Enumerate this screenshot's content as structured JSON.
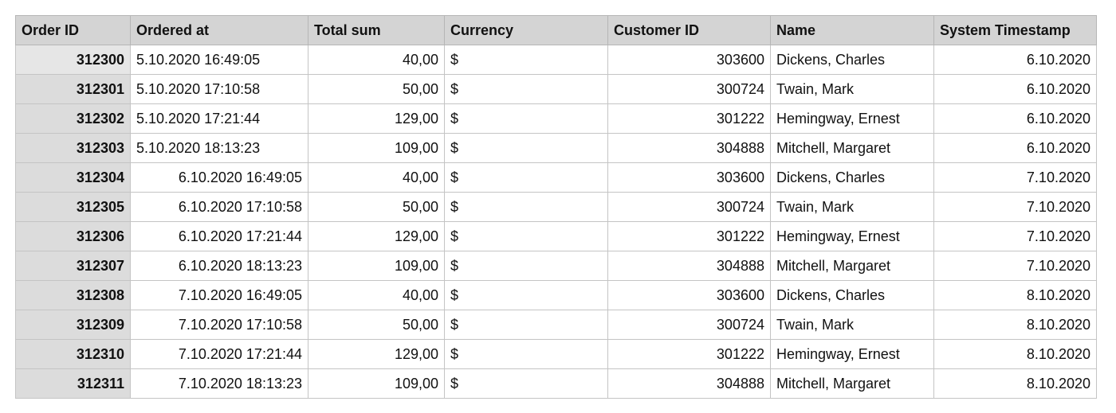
{
  "columns": [
    {
      "key": "order_id",
      "label": "Order ID"
    },
    {
      "key": "ordered_at",
      "label": "Ordered at"
    },
    {
      "key": "total_sum",
      "label": "Total sum"
    },
    {
      "key": "currency",
      "label": "Currency"
    },
    {
      "key": "customer_id",
      "label": "Customer ID"
    },
    {
      "key": "name",
      "label": "Name"
    },
    {
      "key": "system_timestamp",
      "label": "System Timestamp"
    }
  ],
  "rows": [
    {
      "order_id": "312300",
      "ordered_at": "5.10.2020 16:49:05",
      "total_sum": "40,00",
      "currency": "$",
      "customer_id": "303600",
      "name": "Dickens, Charles",
      "system_timestamp": "6.10.2020"
    },
    {
      "order_id": "312301",
      "ordered_at": "5.10.2020 17:10:58",
      "total_sum": "50,00",
      "currency": "$",
      "customer_id": "300724",
      "name": "Twain, Mark",
      "system_timestamp": "6.10.2020"
    },
    {
      "order_id": "312302",
      "ordered_at": "5.10.2020 17:21:44",
      "total_sum": "129,00",
      "currency": "$",
      "customer_id": "301222",
      "name": "Hemingway, Ernest",
      "system_timestamp": "6.10.2020"
    },
    {
      "order_id": "312303",
      "ordered_at": "5.10.2020 18:13:23",
      "total_sum": "109,00",
      "currency": "$",
      "customer_id": "304888",
      "name": "Mitchell, Margaret",
      "system_timestamp": "6.10.2020"
    },
    {
      "order_id": "312304",
      "ordered_at": "6.10.2020 16:49:05",
      "total_sum": "40,00",
      "currency": "$",
      "customer_id": "303600",
      "name": "Dickens, Charles",
      "system_timestamp": "7.10.2020"
    },
    {
      "order_id": "312305",
      "ordered_at": "6.10.2020 17:10:58",
      "total_sum": "50,00",
      "currency": "$",
      "customer_id": "300724",
      "name": "Twain, Mark",
      "system_timestamp": "7.10.2020"
    },
    {
      "order_id": "312306",
      "ordered_at": "6.10.2020 17:21:44",
      "total_sum": "129,00",
      "currency": "$",
      "customer_id": "301222",
      "name": "Hemingway, Ernest",
      "system_timestamp": "7.10.2020"
    },
    {
      "order_id": "312307",
      "ordered_at": "6.10.2020 18:13:23",
      "total_sum": "109,00",
      "currency": "$",
      "customer_id": "304888",
      "name": "Mitchell, Margaret",
      "system_timestamp": "7.10.2020"
    },
    {
      "order_id": "312308",
      "ordered_at": "7.10.2020 16:49:05",
      "total_sum": "40,00",
      "currency": "$",
      "customer_id": "303600",
      "name": "Dickens, Charles",
      "system_timestamp": "8.10.2020"
    },
    {
      "order_id": "312309",
      "ordered_at": "7.10.2020 17:10:58",
      "total_sum": "50,00",
      "currency": "$",
      "customer_id": "300724",
      "name": "Twain, Mark",
      "system_timestamp": "8.10.2020"
    },
    {
      "order_id": "312310",
      "ordered_at": "7.10.2020 17:21:44",
      "total_sum": "129,00",
      "currency": "$",
      "customer_id": "301222",
      "name": "Hemingway, Ernest",
      "system_timestamp": "8.10.2020"
    },
    {
      "order_id": "312311",
      "ordered_at": "7.10.2020 18:13:23",
      "total_sum": "109,00",
      "currency": "$",
      "customer_id": "304888",
      "name": "Mitchell, Margaret",
      "system_timestamp": "8.10.2020"
    }
  ]
}
